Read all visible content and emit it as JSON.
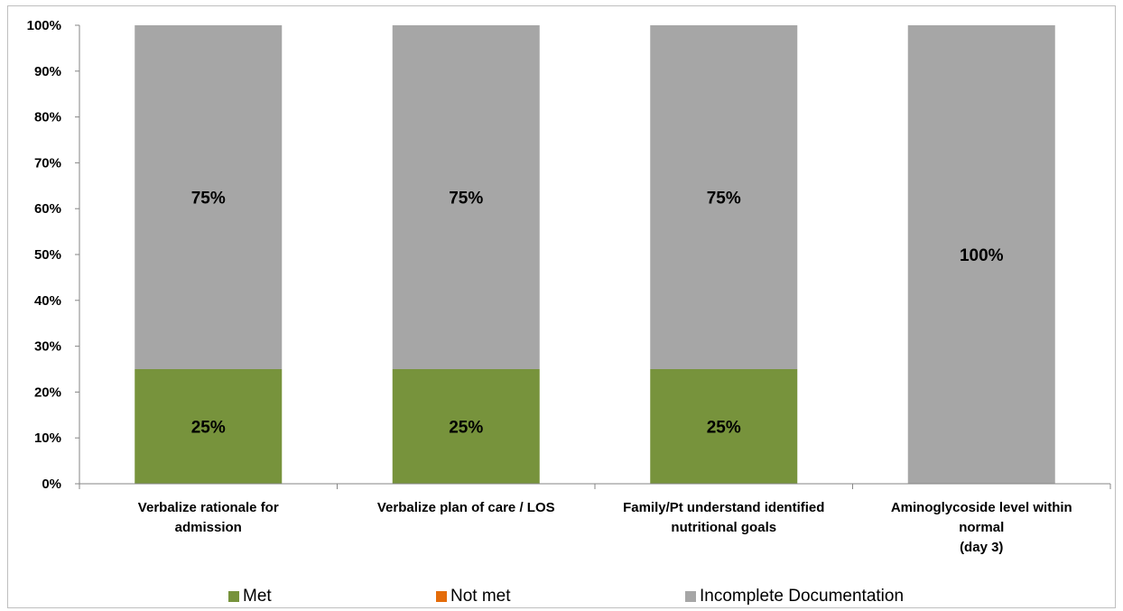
{
  "chart_data": {
    "type": "bar",
    "stacked": true,
    "percent_stacked": true,
    "categories": [
      [
        "Verbalize rationale for",
        "admission"
      ],
      [
        "Verbalize plan of care / LOS"
      ],
      [
        "Family/Pt understand identified",
        "nutritional goals"
      ],
      [
        "Aminoglycoside level within",
        "normal",
        "(day 3)"
      ]
    ],
    "series": [
      {
        "name": "Met",
        "values": [
          25,
          25,
          25,
          0
        ],
        "labels": [
          "25%",
          "25%",
          "25%",
          ""
        ],
        "color": "#77933c"
      },
      {
        "name": "Not met",
        "values": [
          0,
          0,
          0,
          0
        ],
        "labels": [
          "",
          "",
          "",
          ""
        ],
        "color": "#e46c0a"
      },
      {
        "name": "Incomplete Documentation",
        "values": [
          75,
          75,
          75,
          100
        ],
        "labels": [
          "75%",
          "75%",
          "75%",
          "100%"
        ],
        "color": "#a6a6a6"
      }
    ],
    "yticks": [
      "0%",
      "10%",
      "20%",
      "30%",
      "40%",
      "50%",
      "60%",
      "70%",
      "80%",
      "90%",
      "100%"
    ],
    "ylim": [
      0,
      100
    ],
    "grid": false,
    "legend_position": "bottom"
  }
}
